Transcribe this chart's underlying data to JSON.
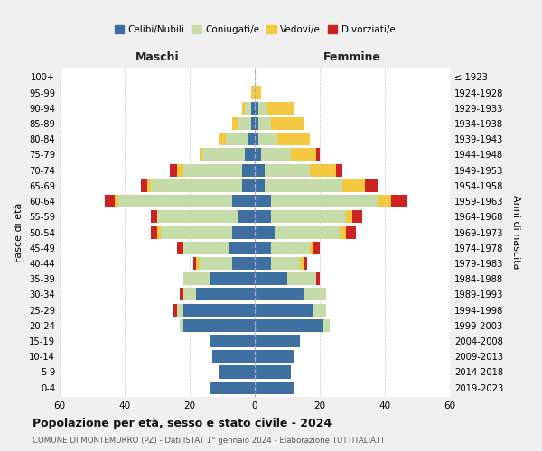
{
  "age_groups": [
    "0-4",
    "5-9",
    "10-14",
    "15-19",
    "20-24",
    "25-29",
    "30-34",
    "35-39",
    "40-44",
    "45-49",
    "50-54",
    "55-59",
    "60-64",
    "65-69",
    "70-74",
    "75-79",
    "80-84",
    "85-89",
    "90-94",
    "95-99",
    "100+"
  ],
  "birth_years": [
    "2019-2023",
    "2014-2018",
    "2009-2013",
    "2004-2008",
    "1999-2003",
    "1994-1998",
    "1989-1993",
    "1984-1988",
    "1979-1983",
    "1974-1978",
    "1969-1973",
    "1964-1968",
    "1959-1963",
    "1954-1958",
    "1949-1953",
    "1944-1948",
    "1939-1943",
    "1934-1938",
    "1929-1933",
    "1924-1928",
    "≤ 1923"
  ],
  "male": {
    "celibi": [
      14,
      11,
      13,
      14,
      22,
      22,
      18,
      14,
      7,
      8,
      7,
      5,
      7,
      4,
      4,
      3,
      2,
      1,
      1,
      0,
      0
    ],
    "coniugati": [
      0,
      0,
      0,
      0,
      1,
      2,
      4,
      8,
      10,
      14,
      22,
      25,
      35,
      28,
      18,
      13,
      7,
      4,
      2,
      0,
      0
    ],
    "vedovi": [
      0,
      0,
      0,
      0,
      0,
      0,
      0,
      0,
      1,
      0,
      1,
      0,
      1,
      1,
      2,
      1,
      2,
      2,
      1,
      1,
      0
    ],
    "divorziati": [
      0,
      0,
      0,
      0,
      0,
      1,
      1,
      0,
      1,
      2,
      2,
      2,
      3,
      2,
      2,
      0,
      0,
      0,
      0,
      0,
      0
    ]
  },
  "female": {
    "nubili": [
      12,
      11,
      12,
      14,
      21,
      18,
      15,
      10,
      5,
      5,
      6,
      5,
      5,
      3,
      3,
      2,
      1,
      1,
      1,
      0,
      0
    ],
    "coniugate": [
      0,
      0,
      0,
      0,
      2,
      4,
      7,
      9,
      9,
      12,
      20,
      23,
      33,
      24,
      14,
      9,
      6,
      4,
      3,
      0,
      0
    ],
    "vedove": [
      0,
      0,
      0,
      0,
      0,
      0,
      0,
      0,
      1,
      1,
      2,
      2,
      4,
      7,
      8,
      8,
      10,
      10,
      8,
      2,
      0
    ],
    "divorziate": [
      0,
      0,
      0,
      0,
      0,
      0,
      0,
      1,
      1,
      2,
      3,
      3,
      5,
      4,
      2,
      1,
      0,
      0,
      0,
      0,
      0
    ]
  },
  "colors": {
    "celibi": "#3d6fa0",
    "coniugati": "#c5dba8",
    "vedovi": "#f5c842",
    "divorziati": "#cc2222"
  },
  "xlim": 60,
  "title": "Popolazione per età, sesso e stato civile - 2024",
  "subtitle": "COMUNE DI MONTEMURRO (PZ) - Dati ISTAT 1° gennaio 2024 - Elaborazione TUTTITALIA.IT",
  "ylabel_left": "Fasce di età",
  "ylabel_right": "Anni di nascita",
  "xlabel_left": "Maschi",
  "xlabel_right": "Femmine",
  "legend_labels": [
    "Celibi/Nubili",
    "Coniugati/e",
    "Vedovi/e",
    "Divorziati/e"
  ],
  "bg_color": "#f0f0f0",
  "plot_bg": "#ffffff"
}
